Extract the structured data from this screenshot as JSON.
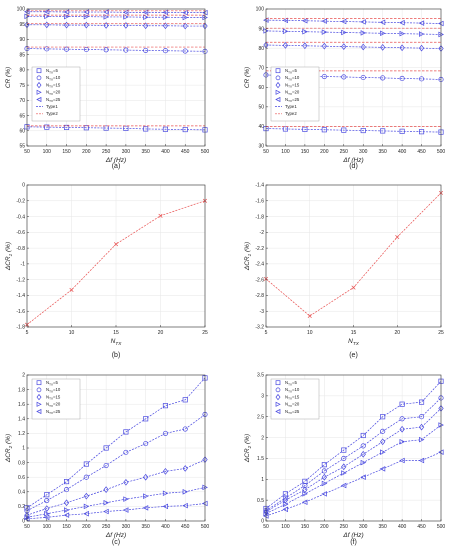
{
  "colors": {
    "type1": "#4a4ae0",
    "type2": "#e85050",
    "axis": "#333333",
    "grid": "#e6e6e6",
    "plot_bg": "#ffffff"
  },
  "chart_data": [
    {
      "id": "a",
      "type": "line",
      "caption": "(a)",
      "xlabel": "Δf (Hz)",
      "ylabel": "CR (%)",
      "xlim": [
        50,
        500
      ],
      "ylim": [
        55,
        100
      ],
      "xticks": [
        50,
        100,
        150,
        200,
        250,
        300,
        350,
        400,
        450,
        500
      ],
      "yticks": [
        55,
        60,
        65,
        70,
        75,
        80,
        85,
        90,
        95,
        100
      ],
      "grid": true,
      "legend_position": "middle-left",
      "legend": [
        "N_TX=5",
        "N_TX=10",
        "N_TX=15",
        "N_TX=20",
        "N_TX=25",
        "Type1",
        "Type2"
      ],
      "x": [
        50,
        100,
        150,
        200,
        250,
        300,
        350,
        400,
        450,
        500
      ],
      "series": [
        {
          "name": "N_TX=25",
          "group": "Type1",
          "marker": "triangle-left",
          "values": [
            99.1,
            99.1,
            99.0,
            99.0,
            99.0,
            98.9,
            98.9,
            98.9,
            98.8,
            98.8
          ]
        },
        {
          "name": "N_TX=25",
          "group": "Type2",
          "marker": "none",
          "values": [
            99.4,
            99.4,
            99.4,
            99.4,
            99.4,
            99.4,
            99.4,
            99.4,
            99.4,
            99.4
          ]
        },
        {
          "name": "N_TX=20",
          "group": "Type1",
          "marker": "triangle-right",
          "values": [
            97.6,
            97.6,
            97.5,
            97.5,
            97.4,
            97.4,
            97.3,
            97.3,
            97.2,
            97.2
          ]
        },
        {
          "name": "N_TX=20",
          "group": "Type2",
          "marker": "none",
          "values": [
            98.0,
            98.0,
            98.0,
            98.0,
            98.0,
            98.0,
            98.0,
            98.0,
            98.0,
            98.0
          ]
        },
        {
          "name": "N_TX=15",
          "group": "Type1",
          "marker": "diamond",
          "values": [
            94.8,
            94.8,
            94.7,
            94.7,
            94.6,
            94.6,
            94.5,
            94.5,
            94.4,
            94.4
          ]
        },
        {
          "name": "N_TX=15",
          "group": "Type2",
          "marker": "none",
          "values": [
            95.3,
            95.3,
            95.3,
            95.3,
            95.3,
            95.3,
            95.3,
            95.3,
            95.3,
            95.3
          ]
        },
        {
          "name": "N_TX=10",
          "group": "Type1",
          "marker": "circle",
          "values": [
            87.0,
            86.9,
            86.8,
            86.7,
            86.6,
            86.5,
            86.4,
            86.3,
            86.2,
            86.1
          ]
        },
        {
          "name": "N_TX=10",
          "group": "Type2",
          "marker": "none",
          "values": [
            87.5,
            87.5,
            87.5,
            87.5,
            87.5,
            87.5,
            87.5,
            87.5,
            87.5,
            87.5
          ]
        },
        {
          "name": "N_TX=5",
          "group": "Type1",
          "marker": "square",
          "values": [
            61.3,
            61.2,
            61.1,
            61.0,
            60.9,
            60.8,
            60.6,
            60.5,
            60.4,
            60.3
          ]
        },
        {
          "name": "N_TX=5",
          "group": "Type2",
          "marker": "none",
          "values": [
            61.6,
            61.6,
            61.6,
            61.6,
            61.6,
            61.6,
            61.6,
            61.6,
            61.6,
            61.6
          ]
        }
      ]
    },
    {
      "id": "d",
      "type": "line",
      "caption": "(d)",
      "xlabel": "Δf (Hz)",
      "ylabel": "CR (%)",
      "xlim": [
        50,
        500
      ],
      "ylim": [
        30,
        100
      ],
      "xticks": [
        50,
        100,
        150,
        200,
        250,
        300,
        350,
        400,
        450,
        500
      ],
      "yticks": [
        30,
        40,
        50,
        60,
        70,
        80,
        90,
        100
      ],
      "grid": true,
      "legend_position": "middle-left",
      "legend": [
        "N_TX=5",
        "N_TX=10",
        "N_TX=15",
        "N_TX=20",
        "N_TX=25",
        "Type1",
        "Type2"
      ],
      "x": [
        50,
        100,
        150,
        200,
        250,
        300,
        350,
        400,
        450,
        500
      ],
      "series": [
        {
          "name": "N_TX=25",
          "group": "Type1",
          "marker": "triangle-left",
          "values": [
            94.3,
            94.2,
            94.0,
            93.8,
            93.6,
            93.4,
            93.2,
            93.0,
            92.8,
            92.6
          ]
        },
        {
          "name": "N_TX=25",
          "group": "Type2",
          "marker": "none",
          "values": [
            95.2,
            95.2,
            95.2,
            95.2,
            95.2,
            95.2,
            95.2,
            95.2,
            95.2,
            95.2
          ]
        },
        {
          "name": "N_TX=20",
          "group": "Type1",
          "marker": "triangle-right",
          "values": [
            88.8,
            88.6,
            88.4,
            88.2,
            88.0,
            87.8,
            87.6,
            87.4,
            87.2,
            87.0
          ]
        },
        {
          "name": "N_TX=20",
          "group": "Type2",
          "marker": "none",
          "values": [
            90.2,
            90.2,
            90.2,
            90.2,
            90.2,
            90.2,
            90.2,
            90.2,
            90.2,
            90.2
          ]
        },
        {
          "name": "N_TX=15",
          "group": "Type1",
          "marker": "diamond",
          "values": [
            81.6,
            81.4,
            81.2,
            81.0,
            80.8,
            80.6,
            80.4,
            80.2,
            80.0,
            79.8
          ]
        },
        {
          "name": "N_TX=15",
          "group": "Type2",
          "marker": "none",
          "values": [
            83.0,
            83.0,
            83.0,
            83.0,
            83.0,
            83.0,
            83.0,
            83.0,
            83.0,
            83.0
          ]
        },
        {
          "name": "N_TX=10",
          "group": "Type1",
          "marker": "circle",
          "values": [
            66.3,
            66.0,
            65.8,
            65.5,
            65.3,
            65.0,
            64.8,
            64.5,
            64.3,
            64.0
          ]
        },
        {
          "name": "N_TX=10",
          "group": "Type2",
          "marker": "none",
          "values": [
            68.4,
            68.4,
            68.4,
            68.4,
            68.4,
            68.4,
            68.4,
            68.4,
            68.4,
            68.4
          ]
        },
        {
          "name": "N_TX=5",
          "group": "Type1",
          "marker": "square",
          "values": [
            38.9,
            38.7,
            38.5,
            38.3,
            38.1,
            37.9,
            37.7,
            37.5,
            37.3,
            37.1
          ]
        },
        {
          "name": "N_TX=5",
          "group": "Type2",
          "marker": "none",
          "values": [
            39.9,
            39.9,
            39.9,
            39.9,
            39.9,
            39.9,
            39.9,
            39.9,
            39.9,
            39.9
          ]
        }
      ]
    },
    {
      "id": "b",
      "type": "line",
      "caption": "(b)",
      "xlabel": "N_TX",
      "ylabel": "ΔCR_1 (%)",
      "xlim": [
        5,
        25
      ],
      "ylim": [
        -1.8,
        0
      ],
      "xticks": [
        5,
        10,
        15,
        20,
        25
      ],
      "yticks": [
        -1.8,
        -1.6,
        -1.4,
        -1.2,
        -1,
        -0.8,
        -0.6,
        -0.4,
        -0.2,
        0
      ],
      "grid": true,
      "x": [
        5,
        10,
        15,
        20,
        25
      ],
      "series": [
        {
          "marker": "x",
          "values": [
            -1.77,
            -1.33,
            -0.75,
            -0.39,
            -0.2
          ]
        }
      ]
    },
    {
      "id": "e",
      "type": "line",
      "caption": "(e)",
      "xlabel": "N_TX",
      "ylabel": "ΔCR_1 (%)",
      "xlim": [
        5,
        25
      ],
      "ylim": [
        -3.2,
        -1.4
      ],
      "xticks": [
        5,
        10,
        15,
        20,
        25
      ],
      "yticks": [
        -3.2,
        -3,
        -2.8,
        -2.6,
        -2.4,
        -2.2,
        -2,
        -1.8,
        -1.6,
        -1.4
      ],
      "grid": true,
      "x": [
        5,
        10,
        15,
        20,
        25
      ],
      "series": [
        {
          "marker": "x",
          "values": [
            -2.59,
            -3.06,
            -2.7,
            -2.06,
            -1.5
          ]
        }
      ]
    },
    {
      "id": "c",
      "type": "line",
      "caption": "(c)",
      "xlabel": "Δf (Hz)",
      "ylabel": "ΔCR_2 (%)",
      "xlim": [
        50,
        500
      ],
      "ylim": [
        0,
        2
      ],
      "xticks": [
        50,
        100,
        150,
        200,
        250,
        300,
        350,
        400,
        450,
        500
      ],
      "yticks": [
        0,
        0.2,
        0.4,
        0.6,
        0.8,
        1,
        1.2,
        1.4,
        1.6,
        1.8,
        2
      ],
      "grid": true,
      "legend_position": "top-left",
      "legend": [
        "N_TX=5",
        "N_TX=10",
        "N_TX=15",
        "N_TX=20",
        "N_TX=25"
      ],
      "x": [
        50,
        100,
        150,
        200,
        250,
        300,
        350,
        400,
        450,
        500
      ],
      "series": [
        {
          "name": "N_TX=5",
          "marker": "square",
          "values": [
            0.18,
            0.36,
            0.54,
            0.78,
            1.0,
            1.22,
            1.4,
            1.58,
            1.66,
            1.96
          ]
        },
        {
          "name": "N_TX=10",
          "marker": "circle",
          "values": [
            0.14,
            0.28,
            0.43,
            0.6,
            0.76,
            0.94,
            1.06,
            1.2,
            1.26,
            1.46
          ]
        },
        {
          "name": "N_TX=15",
          "marker": "diamond",
          "values": [
            0.08,
            0.17,
            0.25,
            0.34,
            0.43,
            0.53,
            0.6,
            0.68,
            0.72,
            0.84
          ]
        },
        {
          "name": "N_TX=20",
          "marker": "triangle-right",
          "values": [
            0.05,
            0.1,
            0.15,
            0.2,
            0.25,
            0.3,
            0.34,
            0.38,
            0.4,
            0.46
          ]
        },
        {
          "name": "N_TX=25",
          "marker": "triangle-left",
          "values": [
            0.03,
            0.05,
            0.08,
            0.1,
            0.13,
            0.15,
            0.18,
            0.2,
            0.21,
            0.24
          ]
        }
      ]
    },
    {
      "id": "f",
      "type": "line",
      "caption": "(f)",
      "xlabel": "Δf (Hz)",
      "ylabel": "ΔCR_2 (%)",
      "xlim": [
        50,
        500
      ],
      "ylim": [
        0,
        3.5
      ],
      "xticks": [
        50,
        100,
        150,
        200,
        250,
        300,
        350,
        400,
        450,
        500
      ],
      "yticks": [
        0,
        0.5,
        1,
        1.5,
        2,
        2.5,
        3,
        3.5
      ],
      "grid": true,
      "legend_position": "top-left",
      "legend": [
        "N_TX=5",
        "N_TX=10",
        "N_TX=15",
        "N_TX=20",
        "N_TX=25"
      ],
      "x": [
        50,
        100,
        150,
        200,
        250,
        300,
        350,
        400,
        450,
        500
      ],
      "series": [
        {
          "name": "N_TX=5",
          "marker": "square",
          "values": [
            0.3,
            0.65,
            0.95,
            1.35,
            1.7,
            2.05,
            2.5,
            2.8,
            2.85,
            3.35
          ]
        },
        {
          "name": "N_TX=10",
          "marker": "circle",
          "values": [
            0.25,
            0.55,
            0.85,
            1.2,
            1.5,
            1.8,
            2.15,
            2.45,
            2.5,
            2.95
          ]
        },
        {
          "name": "N_TX=15",
          "marker": "diamond",
          "values": [
            0.22,
            0.5,
            0.75,
            1.05,
            1.3,
            1.6,
            1.9,
            2.2,
            2.25,
            2.7
          ]
        },
        {
          "name": "N_TX=20",
          "marker": "triangle-right",
          "values": [
            0.18,
            0.4,
            0.65,
            0.9,
            1.15,
            1.4,
            1.65,
            1.9,
            1.95,
            2.3
          ]
        },
        {
          "name": "N_TX=25",
          "marker": "triangle-left",
          "values": [
            0.12,
            0.28,
            0.45,
            0.65,
            0.85,
            1.05,
            1.25,
            1.45,
            1.45,
            1.65
          ]
        }
      ]
    }
  ]
}
